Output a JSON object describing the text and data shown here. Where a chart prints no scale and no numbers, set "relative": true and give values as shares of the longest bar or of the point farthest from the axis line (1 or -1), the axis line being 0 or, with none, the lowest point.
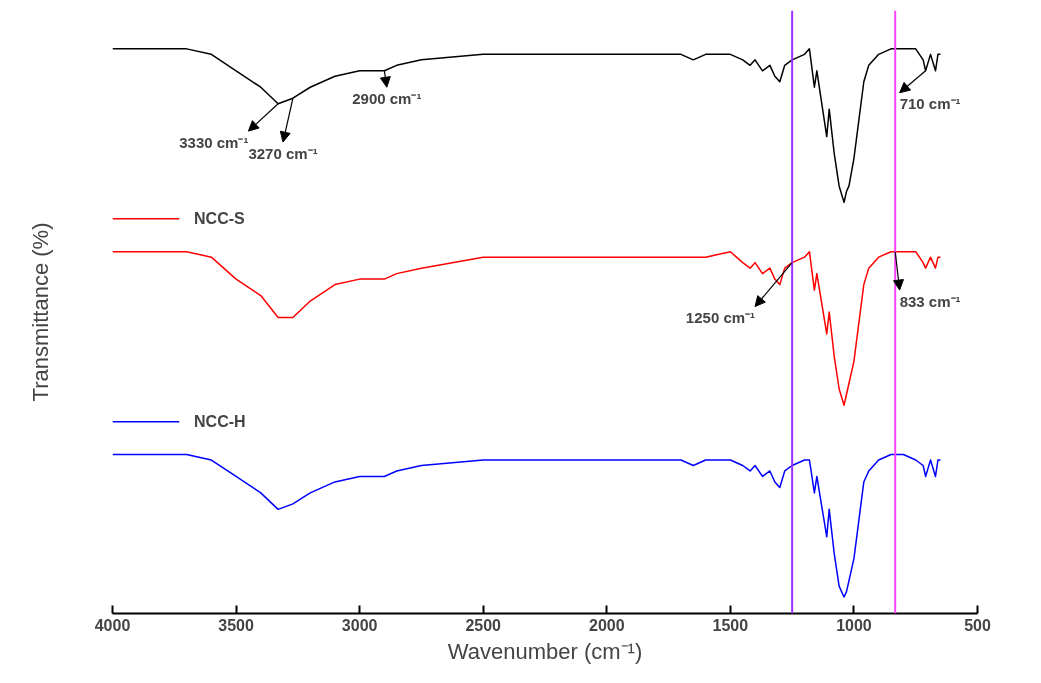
{
  "chart_data": {
    "type": "line",
    "relative": true,
    "xlabel": "Wavenumber (cm⁻¹)",
    "ylabel": "Transmittance (%)",
    "x": [
      4000,
      3700,
      3600,
      3500,
      3400,
      3330,
      3270,
      3200,
      3100,
      3000,
      2950,
      2900,
      2850,
      2750,
      2500,
      2000,
      1700,
      1650,
      1600,
      1500,
      1450,
      1420,
      1400,
      1370,
      1340,
      1320,
      1300,
      1280,
      1250,
      1200,
      1180,
      1160,
      1150,
      1110,
      1100,
      1080,
      1060,
      1040,
      1030,
      1020,
      1000,
      980,
      960,
      940,
      900,
      850,
      800,
      750,
      720,
      710,
      690,
      670,
      660,
      650
    ],
    "xlim": [
      4000,
      500
    ],
    "xticks": [
      4000,
      3500,
      3000,
      2500,
      2000,
      1500,
      1000,
      500
    ],
    "legend": "left",
    "grid": false,
    "series": [
      {
        "color": "#000000",
        "values": [
          1,
          1,
          0.99,
          0.96,
          0.93,
          0.9,
          0.91,
          0.93,
          0.95,
          0.96,
          0.96,
          0.96,
          0.97,
          0.98,
          0.99,
          0.99,
          0.99,
          0.98,
          0.99,
          0.99,
          0.98,
          0.97,
          0.98,
          0.96,
          0.97,
          0.95,
          0.94,
          0.97,
          0.98,
          0.99,
          1.0,
          0.93,
          0.96,
          0.84,
          0.89,
          0.81,
          0.75,
          0.72,
          0.74,
          0.75,
          0.8,
          0.87,
          0.94,
          0.97,
          0.99,
          1.0,
          1,
          1.0,
          0.98,
          0.96,
          0.99,
          0.96,
          0.99,
          0.99
        ]
      },
      {
        "name": "NCC-S",
        "color": "#ff0000",
        "values": [
          0.63,
          0.63,
          0.62,
          0.58,
          0.55,
          0.51,
          0.51,
          0.54,
          0.57,
          0.58,
          0.58,
          0.58,
          0.59,
          0.6,
          0.62,
          0.62,
          0.62,
          0.62,
          0.62,
          0.63,
          0.61,
          0.6,
          0.61,
          0.59,
          0.6,
          0.58,
          0.57,
          0.6,
          0.61,
          0.62,
          0.63,
          0.56,
          0.59,
          0.48,
          0.52,
          0.44,
          0.38,
          0.35,
          0.37,
          0.39,
          0.43,
          0.5,
          0.57,
          0.6,
          0.62,
          0.63,
          0.63,
          0.63,
          0.61,
          0.6,
          0.62,
          0.6,
          0.62,
          0.62
        ]
      },
      {
        "name": "NCC-H",
        "color": "#0000ff",
        "values": [
          0.26,
          0.26,
          0.25,
          0.22,
          0.19,
          0.16,
          0.17,
          0.19,
          0.21,
          0.22,
          0.22,
          0.22,
          0.23,
          0.24,
          0.25,
          0.25,
          0.25,
          0.24,
          0.25,
          0.25,
          0.24,
          0.23,
          0.24,
          0.22,
          0.23,
          0.21,
          0.2,
          0.23,
          0.24,
          0.25,
          0.25,
          0.19,
          0.22,
          0.11,
          0.16,
          0.08,
          0.02,
          0,
          0.01,
          0.03,
          0.07,
          0.14,
          0.21,
          0.23,
          0.25,
          0.26,
          0.26,
          0.25,
          0.24,
          0.22,
          0.25,
          0.22,
          0.25,
          0.25
        ]
      }
    ],
    "ref_lines": [
      {
        "axis": "x",
        "value": 1250,
        "color": "#9b30ff"
      },
      {
        "axis": "x",
        "value": 833,
        "color": "#ff40ff"
      }
    ],
    "annotations": [
      {
        "text": "3330 cm⁻¹",
        "x": 3330,
        "y": 0.9
      },
      {
        "text": "3270 cm⁻¹",
        "x": 3270,
        "y": 0.91
      },
      {
        "text": "2900 cm⁻¹",
        "x": 2900,
        "y": 0.96
      },
      {
        "text": "710 cm⁻¹",
        "x": 710,
        "y": 0.96
      },
      {
        "text": "1250 cm⁻¹",
        "x": 1250,
        "y": 0.61
      },
      {
        "text": "833 cm⁻¹",
        "x": 833,
        "y": 0.63
      }
    ]
  }
}
